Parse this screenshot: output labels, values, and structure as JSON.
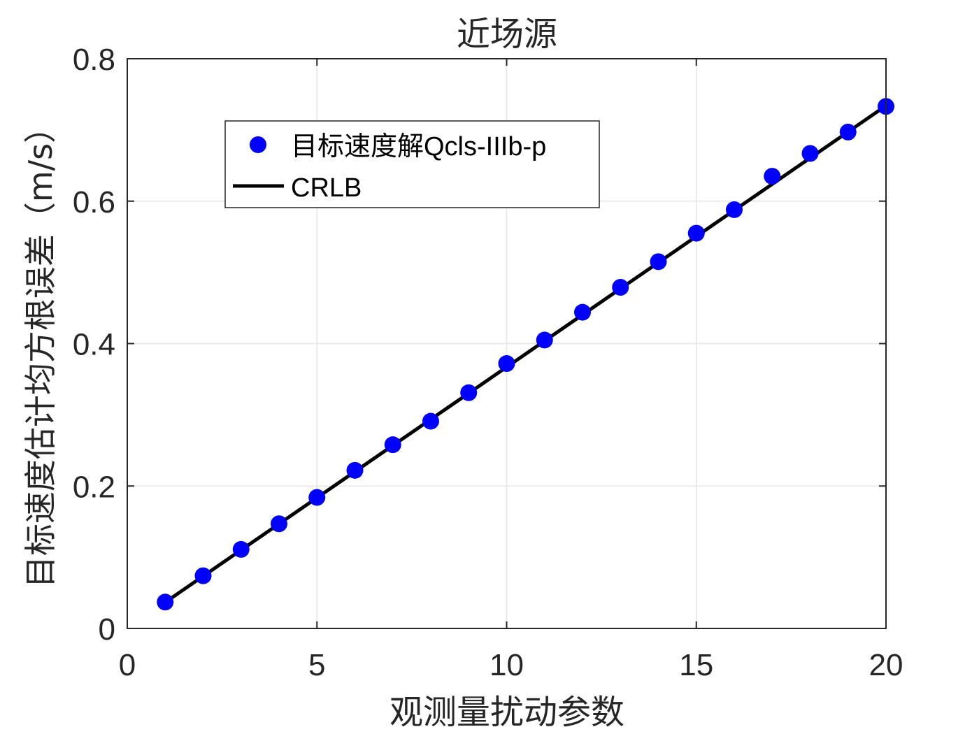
{
  "chart_data": {
    "type": "scatter",
    "title": "近场源",
    "xlabel": "观测量扰动参数",
    "ylabel": "目标速度估计均方根误差（m/s）",
    "xlim": [
      0,
      20
    ],
    "ylim": [
      0,
      0.8
    ],
    "x_ticks": [
      0,
      5,
      10,
      15,
      20
    ],
    "x_tick_labels": [
      "0",
      "5",
      "10",
      "15",
      "20"
    ],
    "y_ticks": [
      0,
      0.2,
      0.4,
      0.6,
      0.8
    ],
    "y_tick_labels": [
      "0",
      "0.2",
      "0.4",
      "0.6",
      "0.8"
    ],
    "grid": true,
    "legend_position": "top-left",
    "x": [
      1,
      2,
      3,
      4,
      5,
      6,
      7,
      8,
      9,
      10,
      11,
      12,
      13,
      14,
      15,
      16,
      17,
      18,
      19,
      20
    ],
    "series": [
      {
        "name": "目标速度解Qcls-IIIb-p",
        "style": "marker",
        "color": "#0000ff",
        "values": [
          0.037,
          0.074,
          0.111,
          0.147,
          0.184,
          0.222,
          0.258,
          0.291,
          0.331,
          0.372,
          0.405,
          0.444,
          0.479,
          0.515,
          0.555,
          0.588,
          0.635,
          0.667,
          0.697,
          0.733
        ]
      },
      {
        "name": "CRLB",
        "style": "line",
        "color": "#000000",
        "values": [
          0.0367,
          0.0734,
          0.1101,
          0.1468,
          0.1835,
          0.2202,
          0.2569,
          0.2936,
          0.3303,
          0.367,
          0.4037,
          0.4404,
          0.4771,
          0.5138,
          0.5505,
          0.5872,
          0.6239,
          0.6606,
          0.6973,
          0.734
        ]
      }
    ]
  }
}
